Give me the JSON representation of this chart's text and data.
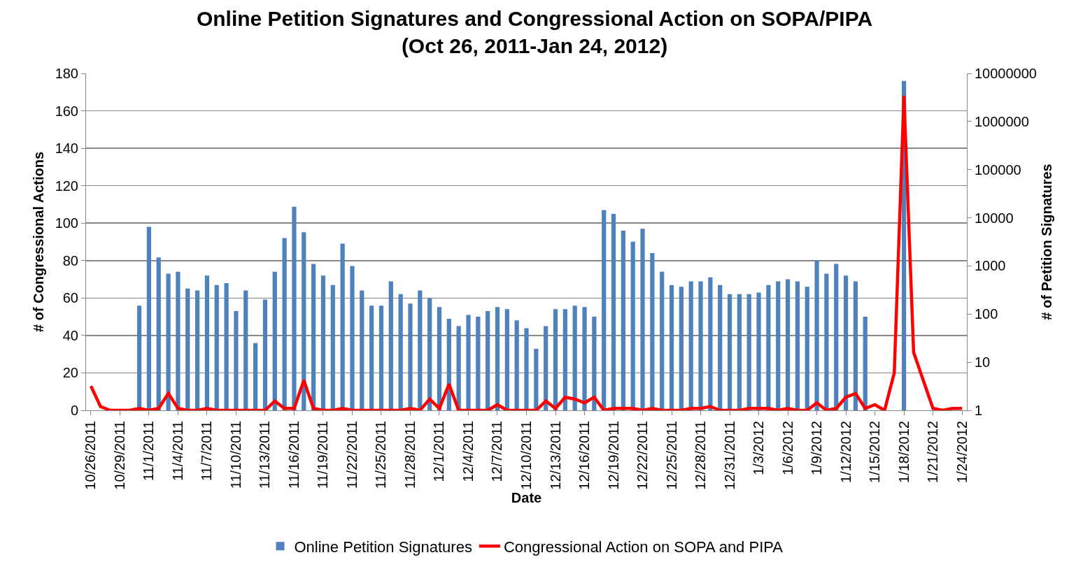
{
  "chart_data": {
    "type": "bar",
    "title": "Online Petition Signatures and Congressional Action on SOPA/PIPA\n(Oct 26, 2011-Jan 24, 2012)",
    "xlabel": "Date",
    "ylabel": "# of Congressional Actions",
    "y2label": "# of Petition Signatures",
    "categories": [
      "10/26/2011",
      null,
      null,
      "10/29/2011",
      null,
      null,
      "11/1/2011",
      null,
      null,
      "11/4/2011",
      null,
      null,
      "11/7/2011",
      null,
      null,
      "11/10/2011",
      null,
      null,
      "11/13/2011",
      null,
      null,
      "11/16/2011",
      null,
      null,
      "11/19/2011",
      null,
      null,
      "11/22/2011",
      null,
      null,
      "11/25/2011",
      null,
      null,
      "11/28/2011",
      null,
      null,
      "12/1/2011",
      null,
      null,
      "12/4/2011",
      null,
      null,
      "12/7/2011",
      null,
      null,
      "12/10/2011",
      null,
      null,
      "12/13/2011",
      null,
      null,
      "12/16/2011",
      null,
      null,
      "12/19/2011",
      null,
      null,
      "12/22/2011",
      null,
      null,
      "12/25/2011",
      null,
      null,
      "12/28/2011",
      null,
      null,
      "12/31/2011",
      null,
      null,
      "1/3/2012",
      null,
      null,
      "1/6/2012",
      null,
      null,
      "1/9/2012",
      null,
      null,
      "1/12/2012",
      null,
      null,
      "1/15/2012",
      null,
      null,
      "1/18/2012",
      null,
      null,
      "1/21/2012",
      null,
      null,
      "1/24/2012"
    ],
    "series": [
      {
        "name": "Online Petition Signatures",
        "axis": "y2",
        "color": "#4f81bd",
        "values": [
          null,
          null,
          null,
          null,
          null,
          150,
          6500,
          1500,
          690,
          755,
          340,
          310,
          630,
          400,
          440,
          115,
          310,
          25,
          200,
          755,
          3800,
          17000,
          5000,
          1100,
          630,
          400,
          2900,
          1000,
          310,
          150,
          150,
          480,
          260,
          165,
          310,
          215,
          140,
          80,
          56,
          96,
          88,
          115,
          140,
          126,
          74,
          51,
          19,
          56,
          126,
          126,
          150,
          140,
          88,
          14500,
          12000,
          5400,
          3200,
          5900,
          1850,
          755,
          400,
          370,
          480,
          480,
          580,
          400,
          260,
          260,
          260,
          280,
          400,
          480,
          530,
          480,
          370,
          1300,
          690,
          1100,
          630,
          480,
          88,
          null,
          null,
          null,
          7000000,
          null,
          null,
          null,
          null,
          null,
          null
        ]
      },
      {
        "name": "Congressional Action on SOPA and PIPA",
        "type": "line",
        "color": "#ff0000",
        "values": [
          13,
          2,
          0,
          0,
          0,
          1,
          0,
          1,
          9,
          1,
          0,
          0,
          1,
          0,
          0,
          0,
          0,
          0,
          0,
          5,
          1,
          1,
          16,
          1,
          0,
          0,
          1,
          0,
          0,
          0,
          0,
          0,
          0,
          1,
          0,
          6,
          1,
          14,
          0,
          0,
          0,
          0,
          3,
          0,
          0,
          0,
          0,
          5,
          1,
          7,
          6,
          4,
          7,
          0,
          1,
          1,
          1,
          0,
          1,
          0,
          0,
          0,
          1,
          1,
          2,
          0,
          0,
          0,
          1,
          1,
          1,
          0,
          1,
          0,
          0,
          4,
          0,
          1,
          7,
          9,
          1,
          3,
          0,
          20,
          168,
          31,
          16,
          1,
          0,
          1,
          1
        ]
      }
    ],
    "ylim": [
      0,
      180
    ],
    "yticks": [
      0,
      20,
      40,
      60,
      80,
      100,
      120,
      140,
      160,
      180
    ],
    "y2lim": [
      1,
      10000000
    ],
    "y2ticks": [
      1,
      10,
      100,
      1000,
      10000,
      100000,
      1000000,
      10000000
    ],
    "log": "y2",
    "grid": "y",
    "legend": "bottom",
    "marker": "none",
    "line_style": "solid"
  }
}
